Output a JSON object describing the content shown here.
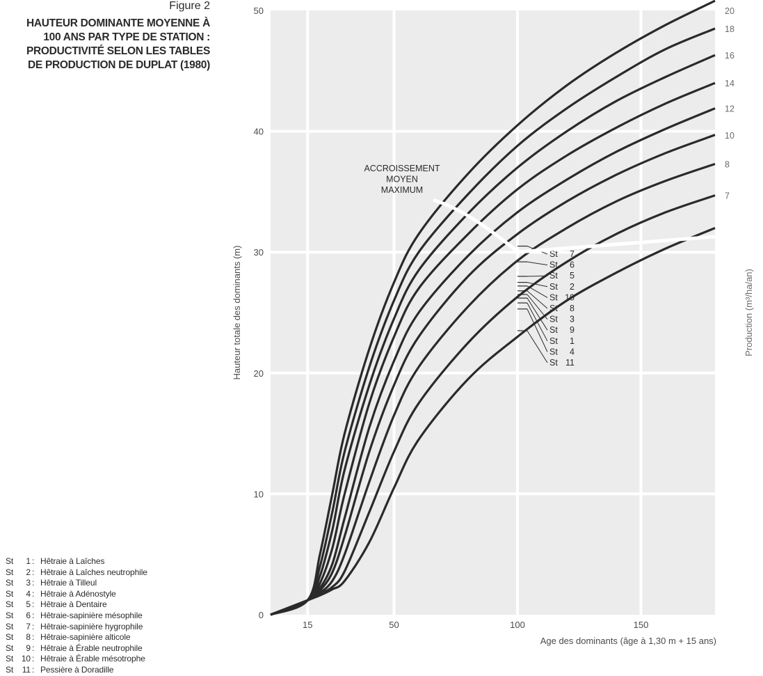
{
  "figure": {
    "label": "Figure 2",
    "title_lines": [
      "HAUTEUR DOMINANTE MOYENNE À",
      "100 ANS PAR TYPE DE STATION :",
      "PRODUCTIVITÉ SELON LES TABLES",
      "DE PRODUCTION DE DUPLAT (1980)"
    ]
  },
  "legend": {
    "items": [
      {
        "st": "St",
        "num": "1",
        "name": "Hêtraie à Laîches"
      },
      {
        "st": "St",
        "num": "2",
        "name": "Hêtraie à Laîches neutrophile"
      },
      {
        "st": "St",
        "num": "3",
        "name": "Hêtraie à Tilleul"
      },
      {
        "st": "St",
        "num": "4",
        "name": "Hêtraie à Adénostyle"
      },
      {
        "st": "St",
        "num": "5",
        "name": "Hêtraie à Dentaire"
      },
      {
        "st": "St",
        "num": "6",
        "name": "Hêtraie-sapinière mésophile"
      },
      {
        "st": "St",
        "num": "7",
        "name": "Hêtraie-sapinière hygrophile"
      },
      {
        "st": "St",
        "num": "8",
        "name": "Hêtraie-sapinière alticole"
      },
      {
        "st": "St",
        "num": "9",
        "name": "Hêtraie à Érable neutrophile"
      },
      {
        "st": "St",
        "num": "10",
        "name": "Hêtraie à Érable mésotrophe"
      },
      {
        "st": "St",
        "num": "11",
        "name": "Pessière à Doradille"
      }
    ]
  },
  "chart_data": {
    "type": "line",
    "xlabel": "Age des dominants (âge à 1,30 m + 15 ans)",
    "ylabel": "Hauteur totale des dominants (m)",
    "y2label": "Production (m³/ha/an)",
    "xlim": [
      0,
      180
    ],
    "ylim": [
      0,
      50
    ],
    "x_ticks": [
      15,
      50,
      100,
      150
    ],
    "y_ticks": [
      0,
      10,
      20,
      30,
      40,
      50
    ],
    "grid": true,
    "background": "#ececec",
    "line_color": "#2a2a2a",
    "series": [
      {
        "x": [
          0,
          15,
          20,
          25,
          30,
          40,
          50,
          60,
          80,
          100,
          120,
          140,
          160,
          180
        ],
        "y": [
          0,
          1.2,
          5,
          10,
          15,
          22,
          27.5,
          31.5,
          36.5,
          40.5,
          43.8,
          46.5,
          48.8,
          50.8
        ],
        "right_label": "20"
      },
      {
        "x": [
          0,
          15,
          20,
          25,
          30,
          40,
          50,
          60,
          80,
          100,
          120,
          140,
          160,
          180
        ],
        "y": [
          0,
          1.2,
          4,
          8.5,
          13.5,
          20.5,
          26,
          30,
          34.8,
          38.8,
          41.9,
          44.5,
          46.8,
          48.5
        ],
        "right_label": "18"
      },
      {
        "x": [
          0,
          15,
          20,
          25,
          30,
          40,
          50,
          60,
          80,
          100,
          120,
          140,
          160,
          180
        ],
        "y": [
          0,
          1.2,
          3.2,
          7,
          12,
          19,
          24.5,
          28.5,
          33.2,
          37,
          40,
          42.5,
          44.5,
          46.3
        ],
        "right_label": "16"
      },
      {
        "x": [
          0,
          15,
          20,
          25,
          30,
          40,
          50,
          60,
          80,
          100,
          120,
          140,
          160,
          180
        ],
        "y": [
          0,
          1.2,
          2.6,
          5.5,
          10,
          17.5,
          23,
          27,
          31.5,
          35.2,
          38,
          40.3,
          42.3,
          44
        ],
        "right_label": "14"
      },
      {
        "x": [
          0,
          15,
          20,
          25,
          30,
          40,
          50,
          60,
          80,
          100,
          120,
          140,
          160,
          180
        ],
        "y": [
          0,
          1.2,
          2.2,
          4.2,
          8,
          15.5,
          21,
          25,
          29.7,
          33.3,
          36,
          38.3,
          40.2,
          41.9
        ],
        "right_label": "12"
      },
      {
        "x": [
          0,
          15,
          20,
          25,
          30,
          40,
          50,
          60,
          80,
          100,
          120,
          140,
          160,
          180
        ],
        "y": [
          0,
          1.2,
          2,
          3.5,
          6.5,
          13.5,
          19,
          23,
          28,
          31.5,
          34.2,
          36.4,
          38.2,
          39.7
        ],
        "right_label": "10"
      },
      {
        "x": [
          0,
          15,
          20,
          25,
          30,
          40,
          50,
          60,
          80,
          100,
          120,
          140,
          160,
          180
        ],
        "y": [
          0,
          1.2,
          1.8,
          2.8,
          5,
          11,
          16.5,
          20.5,
          25.5,
          29.3,
          32,
          34.2,
          35.9,
          37.3
        ],
        "right_label": "8"
      },
      {
        "x": [
          0,
          15,
          20,
          25,
          30,
          40,
          50,
          60,
          80,
          100,
          120,
          140,
          160,
          180
        ],
        "y": [
          0,
          1.2,
          1.7,
          2.3,
          3.6,
          8.5,
          13.5,
          17.5,
          22.5,
          26.3,
          29.2,
          31.5,
          33.3,
          34.7
        ],
        "right_label": "7"
      },
      {
        "x": [
          0,
          15,
          20,
          25,
          30,
          40,
          50,
          60,
          80,
          100,
          120,
          140,
          160,
          180
        ],
        "y": [
          0,
          1.2,
          1.6,
          2.1,
          2.8,
          6,
          10.5,
          14.5,
          19.5,
          23,
          26,
          28.3,
          30.3,
          32
        ],
        "right_label": ""
      }
    ],
    "station_labels": [
      {
        "text": "St",
        "num": "7",
        "y": 30.5
      },
      {
        "text": "St",
        "num": "6",
        "y": 29.2
      },
      {
        "text": "St",
        "num": "5",
        "y": 28.0
      },
      {
        "text": "St",
        "num": "2",
        "y": 27.5
      },
      {
        "text": "St",
        "num": "10",
        "y": 27.2
      },
      {
        "text": "St",
        "num": "8",
        "y": 26.8
      },
      {
        "text": "St",
        "num": "3",
        "y": 26.5
      },
      {
        "text": "St",
        "num": "9",
        "y": 26.2
      },
      {
        "text": "St",
        "num": "1",
        "y": 25.8
      },
      {
        "text": "St",
        "num": "4",
        "y": 25.3
      },
      {
        "text": "St",
        "num": "11",
        "y": 23.5
      }
    ],
    "annotation": {
      "lines": [
        "ACCROISSEMENT",
        "MOYEN",
        "MAXIMUM"
      ]
    }
  }
}
